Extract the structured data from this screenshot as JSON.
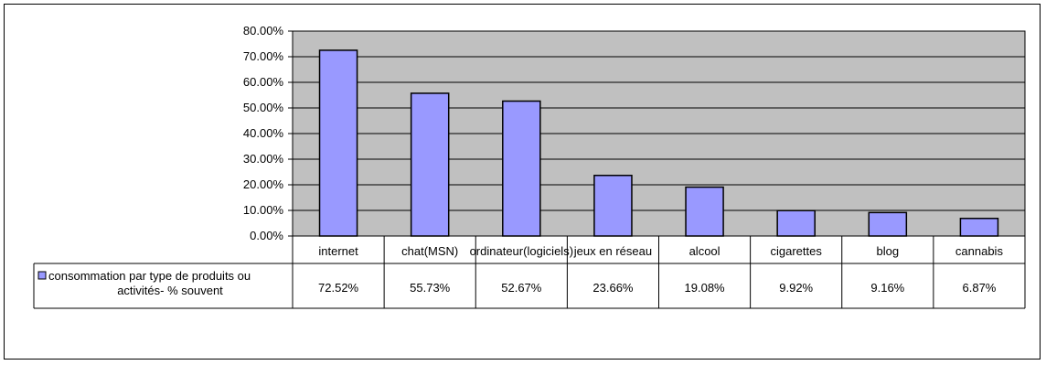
{
  "chart_data": {
    "type": "bar",
    "categories": [
      "internet",
      "chat(MSN)",
      "ordinateur(logiciels)",
      "jeux en réseau",
      "alcool",
      "cigarettes",
      "blog",
      "cannabis"
    ],
    "values": [
      72.52,
      55.73,
      52.67,
      23.66,
      19.08,
      9.92,
      9.16,
      6.87
    ],
    "value_labels": [
      "72.52%",
      "55.73%",
      "52.67%",
      "23.66%",
      "19.08%",
      "9.92%",
      "9.16%",
      "6.87%"
    ],
    "series": [
      {
        "name": "consommation par type de produits ou activités-  % souvent",
        "values": [
          72.52,
          55.73,
          52.67,
          23.66,
          19.08,
          9.92,
          9.16,
          6.87
        ]
      }
    ],
    "legend_lines": [
      "consommation par type de produits ou",
      "activités-  % souvent"
    ],
    "y_ticks": [
      "0.00%",
      "10.00%",
      "20.00%",
      "30.00%",
      "40.00%",
      "50.00%",
      "60.00%",
      "70.00%",
      "80.00%"
    ],
    "ylim": [
      0,
      80
    ],
    "grid": true,
    "data_table": true,
    "colors": {
      "plot_bg": "#c0c0c0",
      "bar_fill": "#9999ff",
      "bar_stroke": "#000000",
      "legend_key": "#9999ff"
    }
  }
}
